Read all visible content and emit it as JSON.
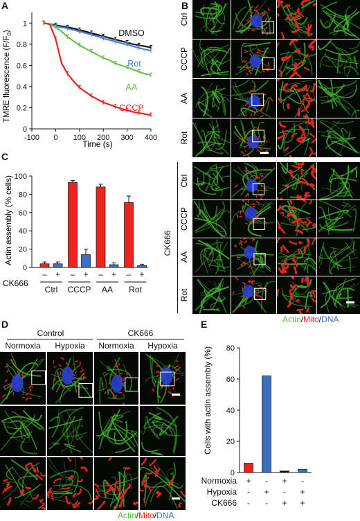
{
  "panels": {
    "A": "A",
    "B": "B",
    "C": "C",
    "D": "D",
    "E": "E"
  },
  "chart_data": [
    {
      "panel": "A",
      "type": "line",
      "xlabel": "Time (s)",
      "ylabel": "TMRE fluorescence (F/F",
      "ylabel_sub": "0",
      "ylabel_end": ")",
      "xlim": [
        -100,
        400
      ],
      "ylim": [
        0,
        1.1
      ],
      "xticks": [
        "-100",
        "0",
        "100",
        "200",
        "300",
        "400"
      ],
      "yticks": [
        "0",
        "0.2",
        "0.4",
        "0.6",
        "0.8",
        "1"
      ],
      "x": [
        -50,
        -25,
        0,
        25,
        50,
        75,
        100,
        125,
        150,
        175,
        200,
        225,
        250,
        275,
        300,
        325,
        350,
        375,
        400
      ],
      "series": [
        {
          "name": "DMSO",
          "color": "#111111",
          "values": [
            1.0,
            0.99,
            0.98,
            0.97,
            0.96,
            0.95,
            0.935,
            0.92,
            0.905,
            0.89,
            0.875,
            0.86,
            0.845,
            0.83,
            0.815,
            0.8,
            0.79,
            0.78,
            0.77
          ]
        },
        {
          "name": "Rot",
          "color": "#4a7fd4",
          "values": [
            1.0,
            0.99,
            0.97,
            0.96,
            0.95,
            0.935,
            0.92,
            0.905,
            0.89,
            0.875,
            0.855,
            0.84,
            0.825,
            0.81,
            0.795,
            0.78,
            0.765,
            0.75,
            0.74
          ]
        },
        {
          "name": "AA",
          "color": "#66c24a",
          "values": [
            1.0,
            0.99,
            0.96,
            0.92,
            0.87,
            0.83,
            0.79,
            0.76,
            0.73,
            0.7,
            0.67,
            0.65,
            0.62,
            0.6,
            0.58,
            0.56,
            0.54,
            0.52,
            0.51
          ]
        },
        {
          "name": "CCCP",
          "color": "#e8251f",
          "values": [
            1.0,
            0.99,
            0.85,
            0.62,
            0.52,
            0.45,
            0.39,
            0.35,
            0.31,
            0.28,
            0.25,
            0.23,
            0.21,
            0.19,
            0.175,
            0.16,
            0.15,
            0.14,
            0.13
          ]
        }
      ]
    },
    {
      "panel": "C",
      "type": "bar",
      "ylabel": "Actin assembly (% cells)",
      "ylim": [
        0,
        100
      ],
      "yticks": [
        "0",
        "20",
        "40",
        "60",
        "80",
        "100"
      ],
      "categories": [
        "Ctrl",
        "CCCP",
        "AA",
        "Rot"
      ],
      "row_label": "CK666",
      "ck666_signs": [
        "–",
        "+",
        "–",
        "+",
        "–",
        "+",
        "–",
        "+"
      ],
      "series": [
        {
          "color": "#e8251f",
          "values": [
            4,
            93,
            88,
            71
          ],
          "errors": [
            2,
            2,
            3,
            7
          ]
        },
        {
          "color": "#3d6ec5",
          "values": [
            4,
            14,
            3,
            2
          ],
          "errors": [
            2,
            6,
            2,
            1.5
          ]
        }
      ]
    },
    {
      "panel": "E",
      "type": "bar",
      "ylabel": "Cells with actin assembly (%)",
      "ylim": [
        0,
        80
      ],
      "yticks": [
        "0",
        "20",
        "40",
        "60",
        "80"
      ],
      "values": [
        6,
        62,
        1,
        2
      ],
      "colors": [
        "#e8251f",
        "#3d6ec5",
        "#111111",
        "#3d6ec5"
      ],
      "rows": [
        {
          "label": "Normoxia",
          "signs": [
            "+",
            "-",
            "+",
            "-"
          ]
        },
        {
          "label": "Hypoxia",
          "signs": [
            "-",
            "+",
            "-",
            "+"
          ]
        },
        {
          "label": "CK666",
          "signs": [
            "-",
            "-",
            "+",
            "+"
          ]
        }
      ]
    }
  ],
  "panelB": {
    "rows_top": [
      "Ctrl",
      "CCCP",
      "AA",
      "Rot"
    ],
    "rows_bottom": [
      "Ctrl",
      "CCCP",
      "AA",
      "Rot"
    ],
    "group_label": "CK666"
  },
  "panelD": {
    "group_control": "Control",
    "group_ck666": "CK666",
    "columns": [
      "Normoxia",
      "Hypoxia",
      "Normoxia",
      "Hypoxia"
    ]
  },
  "legend": {
    "actin": "Actin",
    "mito": "Mito",
    "dna": "DNA",
    "sep": "/",
    "color_actin": "#5cc13a",
    "color_mito": "#e8251f",
    "color_dna": "#3d6ec5"
  }
}
